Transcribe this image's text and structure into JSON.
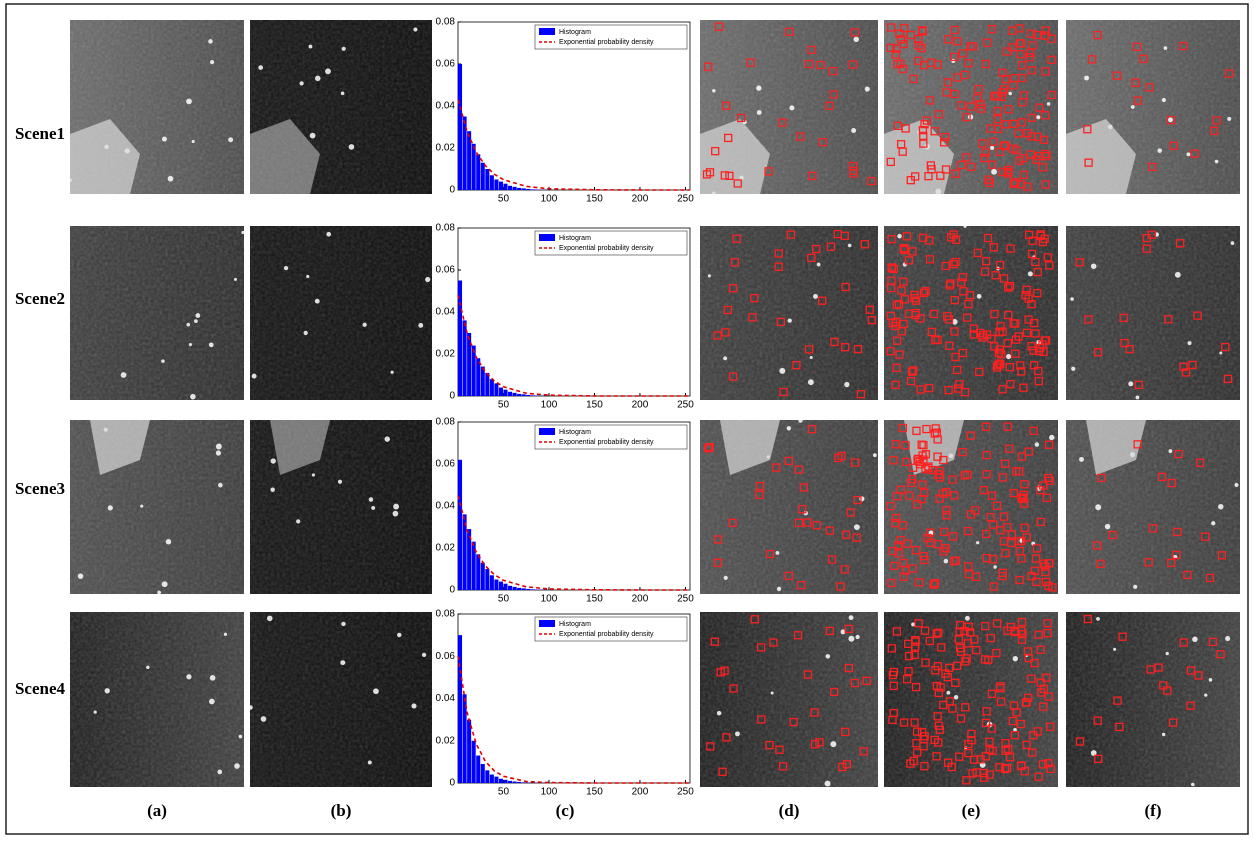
{
  "row_labels": [
    "Scene1",
    "Scene2",
    "Scene3",
    "Scene4"
  ],
  "column_labels": [
    "(a)",
    "(b)",
    "(c)",
    "(d)",
    "(e)",
    "(f)"
  ],
  "chart_data": [
    {
      "type": "histogram",
      "bins": [
        0,
        5,
        10,
        15,
        20,
        25,
        30,
        35,
        40,
        45,
        50,
        55,
        60,
        65,
        70,
        75,
        80,
        85,
        90,
        95,
        100
      ],
      "series": [
        {
          "name": "Histogram",
          "color": "#0000ff",
          "values": [
            0.06,
            0.035,
            0.028,
            0.022,
            0.017,
            0.013,
            0.01,
            0.007,
            0.005,
            0.004,
            0.003,
            0.002,
            0.0015,
            0.001,
            0.0008,
            0.0005,
            0.0003,
            0.0002,
            0.0001,
            0.0001
          ]
        },
        {
          "name": "Exponential probability density",
          "color": "#e00000",
          "x": [
            0,
            10,
            20,
            30,
            40,
            50,
            75,
            100,
            150,
            200,
            255
          ],
          "values": [
            0.043,
            0.0278,
            0.018,
            0.0116,
            0.0075,
            0.0049,
            0.0017,
            0.0006,
            0.0001,
            0,
            0
          ]
        }
      ],
      "xlim": [
        0,
        255
      ],
      "ylim": [
        0,
        0.08
      ],
      "xticks": [
        50,
        100,
        150,
        200,
        250
      ],
      "yticks": [
        0,
        0.02,
        0.04,
        0.06,
        0.08
      ],
      "legend": "upper right"
    },
    {
      "type": "histogram",
      "bins": [
        0,
        5,
        10,
        15,
        20,
        25,
        30,
        35,
        40,
        45,
        50,
        55,
        60,
        65,
        70,
        75,
        80,
        85,
        90,
        95,
        100
      ],
      "series": [
        {
          "name": "Histogram",
          "color": "#0000ff",
          "values": [
            0.055,
            0.036,
            0.03,
            0.024,
            0.018,
            0.014,
            0.011,
            0.008,
            0.006,
            0.004,
            0.003,
            0.002,
            0.0015,
            0.001,
            0.0008,
            0.0005,
            0.0003,
            0.0002,
            0.0001,
            0.0001
          ]
        },
        {
          "name": "Exponential probability density",
          "color": "#e00000",
          "x": [
            0,
            10,
            20,
            30,
            40,
            50,
            75,
            100,
            150,
            200,
            255
          ],
          "values": [
            0.048,
            0.0298,
            0.0185,
            0.0115,
            0.0071,
            0.0044,
            0.0013,
            0.0004,
            0,
            0,
            0
          ]
        }
      ],
      "xlim": [
        0,
        255
      ],
      "ylim": [
        0,
        0.08
      ],
      "xticks": [
        50,
        100,
        150,
        200,
        250
      ],
      "yticks": [
        0,
        0.02,
        0.04,
        0.06,
        0.08
      ],
      "legend": "upper right"
    },
    {
      "type": "histogram",
      "bins": [
        0,
        5,
        10,
        15,
        20,
        25,
        30,
        35,
        40,
        45,
        50,
        55,
        60,
        65,
        70,
        75,
        80,
        85,
        90,
        95,
        100
      ],
      "series": [
        {
          "name": "Histogram",
          "color": "#0000ff",
          "values": [
            0.062,
            0.036,
            0.029,
            0.023,
            0.017,
            0.013,
            0.01,
            0.007,
            0.005,
            0.004,
            0.003,
            0.002,
            0.0015,
            0.001,
            0.0008,
            0.0005,
            0.0003,
            0.0002,
            0.0001,
            0.0001
          ]
        },
        {
          "name": "Exponential probability density",
          "color": "#e00000",
          "x": [
            0,
            10,
            20,
            30,
            40,
            50,
            75,
            100,
            150,
            200,
            255
          ],
          "values": [
            0.045,
            0.0285,
            0.0181,
            0.0115,
            0.0073,
            0.0046,
            0.0015,
            0.0005,
            0.0001,
            0,
            0
          ]
        }
      ],
      "xlim": [
        0,
        255
      ],
      "ylim": [
        0,
        0.08
      ],
      "xticks": [
        50,
        100,
        150,
        200,
        250
      ],
      "yticks": [
        0,
        0.02,
        0.04,
        0.06,
        0.08
      ],
      "legend": "upper right"
    },
    {
      "type": "histogram",
      "bins": [
        0,
        5,
        10,
        15,
        20,
        25,
        30,
        35,
        40,
        45,
        50,
        55,
        60,
        65,
        70,
        75,
        80,
        85,
        90,
        95,
        100
      ],
      "series": [
        {
          "name": "Histogram",
          "color": "#0000ff",
          "values": [
            0.07,
            0.042,
            0.03,
            0.02,
            0.013,
            0.009,
            0.006,
            0.004,
            0.003,
            0.002,
            0.0015,
            0.001,
            0.0007,
            0.0005,
            0.0003,
            0.0002,
            0.0001,
            0.0001,
            0.0001,
            0.0001
          ]
        },
        {
          "name": "Exponential probability density",
          "color": "#e00000",
          "x": [
            0,
            10,
            20,
            30,
            40,
            50,
            75,
            100,
            150,
            200,
            255
          ],
          "values": [
            0.06,
            0.0333,
            0.0185,
            0.0103,
            0.0057,
            0.0032,
            0.0007,
            0.0002,
            0,
            0,
            0
          ]
        }
      ],
      "xlim": [
        0,
        255
      ],
      "ylim": [
        0,
        0.08
      ],
      "xticks": [
        50,
        100,
        150,
        200,
        250
      ],
      "yticks": [
        0,
        0.02,
        0.04,
        0.06,
        0.08
      ],
      "legend": "upper right"
    }
  ]
}
